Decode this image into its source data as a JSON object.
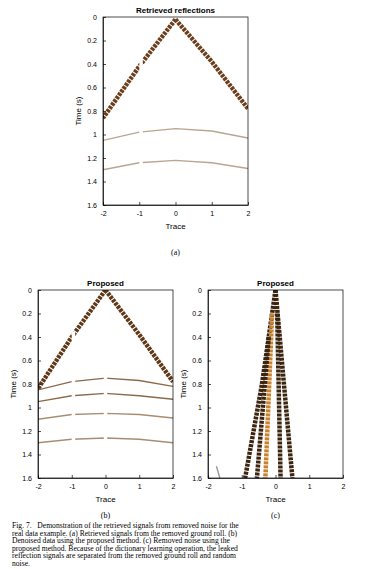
{
  "chart_data": [
    {
      "type": "line",
      "title": "Retrieved reflections",
      "x_label": "Trace",
      "y_label": "Time (s)",
      "xlim": [
        -2,
        2
      ],
      "ylim": [
        0,
        1.6
      ],
      "xticks": [
        -2,
        -1,
        0,
        1,
        2
      ],
      "yticks": [
        0,
        0.2,
        0.4,
        0.6,
        0.8,
        1,
        1.2,
        1.4,
        1.6
      ],
      "grid": false,
      "series": [
        {
          "x": [
            0,
            -1,
            -2
          ],
          "values": [
            0.02,
            0.42,
            0.86
          ],
          "color": "#6b3f1d",
          "line_style": "thick"
        },
        {
          "x": [
            0,
            1,
            2
          ],
          "values": [
            0.02,
            0.38,
            0.78
          ],
          "color": "#6b3f1d",
          "line_style": "thick"
        },
        {
          "x": [
            -2,
            -1,
            0,
            1,
            2
          ],
          "values": [
            1.05,
            0.98,
            0.95,
            0.97,
            1.03
          ],
          "color": "#b9a592",
          "line_style": "solid"
        },
        {
          "x": [
            -2,
            -1,
            0,
            1,
            2
          ],
          "values": [
            1.3,
            1.24,
            1.22,
            1.24,
            1.29
          ],
          "color": "#b9a592",
          "line_style": "solid"
        },
        {
          "x": [
            -0.95,
            -0.95
          ],
          "values": [
            0.3,
            1.6
          ],
          "color": "#ffffff",
          "line_style": "band"
        }
      ]
    },
    {
      "type": "line",
      "title": "Proposed",
      "x_label": "Trace",
      "y_label": "Time (s)",
      "xlim": [
        -2,
        2
      ],
      "ylim": [
        0,
        1.6
      ],
      "xticks": [
        -2,
        -1,
        0,
        1,
        2
      ],
      "yticks": [
        0,
        0.2,
        0.4,
        0.6,
        0.8,
        1,
        1.2,
        1.4,
        1.6
      ],
      "grid": false,
      "series": [
        {
          "x": [
            0,
            -1,
            -2
          ],
          "values": [
            0,
            0.4,
            0.84
          ],
          "color": "#5e3817",
          "line_style": "thick"
        },
        {
          "x": [
            0,
            1,
            2
          ],
          "values": [
            0,
            0.38,
            0.78
          ],
          "color": "#5e3817",
          "line_style": "thick"
        },
        {
          "x": [
            -2,
            -1,
            0,
            1,
            2
          ],
          "values": [
            0.85,
            0.78,
            0.75,
            0.77,
            0.82
          ],
          "color": "#8a6a4a",
          "line_style": "solid"
        },
        {
          "x": [
            -2,
            -1,
            0,
            1,
            2
          ],
          "values": [
            0.95,
            0.9,
            0.88,
            0.9,
            0.93
          ],
          "color": "#8a6a4a",
          "line_style": "solid"
        },
        {
          "x": [
            -2,
            -1,
            0,
            1,
            2
          ],
          "values": [
            1.1,
            1.06,
            1.05,
            1.06,
            1.09
          ],
          "color": "#a88d74",
          "line_style": "solid"
        },
        {
          "x": [
            -2,
            -1,
            0,
            1,
            2
          ],
          "values": [
            1.3,
            1.27,
            1.26,
            1.27,
            1.3
          ],
          "color": "#a88d74",
          "line_style": "solid"
        },
        {
          "x": [
            -0.95,
            -0.95
          ],
          "values": [
            0.35,
            1.6
          ],
          "color": "#ffffff",
          "line_style": "band"
        },
        {
          "x": [
            0,
            0
          ],
          "values": [
            0.05,
            1.6
          ],
          "color": "#ffffff",
          "line_style": "band"
        }
      ]
    },
    {
      "type": "line",
      "title": "Proposed",
      "x_label": "Trace",
      "y_label": "Time (s)",
      "xlim": [
        -2,
        2
      ],
      "ylim": [
        0,
        1.6
      ],
      "xticks": [
        -2,
        -1,
        0,
        1,
        2
      ],
      "yticks": [
        0,
        0.2,
        0.4,
        0.6,
        0.8,
        1,
        1.2,
        1.4,
        1.6
      ],
      "grid": false,
      "series": [
        {
          "x": [
            0,
            -0.4,
            -0.9
          ],
          "values": [
            0,
            0.8,
            1.6
          ],
          "color": "#3b2410",
          "line_style": "thick"
        },
        {
          "x": [
            0,
            0.25,
            0.5
          ],
          "values": [
            0,
            0.8,
            1.6
          ],
          "color": "#3b2410",
          "line_style": "thick"
        },
        {
          "x": [
            -0.1,
            -0.3
          ],
          "values": [
            0.2,
            1.6
          ],
          "color": "#c9822e",
          "line_style": "thick"
        },
        {
          "x": [
            0.05,
            0.15
          ],
          "values": [
            0.2,
            1.6
          ],
          "color": "#3b2410",
          "line_style": "thick"
        },
        {
          "x": [
            -0.2,
            -0.55
          ],
          "values": [
            0.4,
            1.6
          ],
          "color": "#3b2410",
          "line_style": "thick"
        },
        {
          "x": [
            -1.75,
            -1.65
          ],
          "values": [
            1.5,
            1.6
          ],
          "color": "#999999",
          "line_style": "solid"
        }
      ]
    }
  ],
  "figure": {
    "panel_labels": [
      "(a)",
      "(b)",
      "(c)"
    ],
    "caption": [
      "Fig. 7.   Demonstration of the retrieved signals from removed noise for the",
      "real data example. (a) Retrieved signals from the removed ground roll. (b)",
      "Denoised data using the proposed method. (c) Removed noise using the",
      "proposed method. Because of the dictionary learning operation, the leaked",
      "reflection signals are separated from the removed ground roll and random",
      "noise."
    ]
  }
}
